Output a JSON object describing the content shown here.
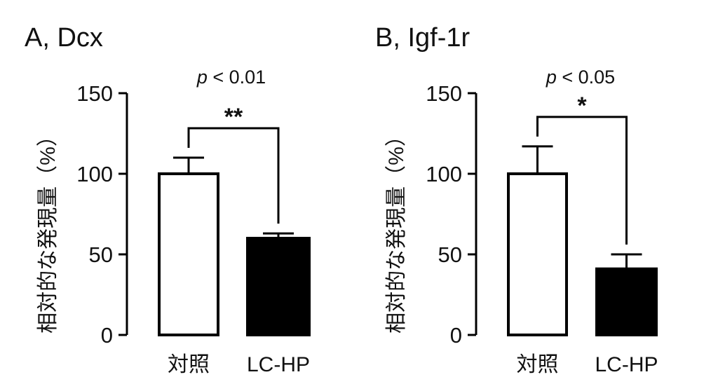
{
  "chart_data": [
    {
      "type": "bar",
      "panel_label": "A,",
      "title": "Dcx",
      "ylabel": "相対的な発現量（%）",
      "ylim": [
        0,
        150
      ],
      "yticks": [
        "0",
        "50",
        "100",
        "150"
      ],
      "ytick_values": [
        0,
        50,
        100,
        150
      ],
      "categories": [
        "対照",
        "LC-HP"
      ],
      "values": [
        100,
        60
      ],
      "error_upper": [
        110,
        63
      ],
      "bar_fill": [
        "#ffffff",
        "#000000"
      ],
      "significance": "**",
      "pvalue_italic": "p",
      "pvalue_rest": " < 0.01",
      "grid": false
    },
    {
      "type": "bar",
      "panel_label": "B,",
      "title": "Igf-1r",
      "ylabel": "相対的な発現量（%）",
      "ylim": [
        0,
        150
      ],
      "yticks": [
        "0",
        "50",
        "100",
        "150"
      ],
      "ytick_values": [
        0,
        50,
        100,
        150
      ],
      "categories": [
        "対照",
        "LC-HP"
      ],
      "values": [
        100,
        41
      ],
      "error_upper": [
        117,
        50
      ],
      "bar_fill": [
        "#ffffff",
        "#000000"
      ],
      "significance": "*",
      "pvalue_italic": "p",
      "pvalue_rest": " < 0.05",
      "grid": false
    }
  ]
}
